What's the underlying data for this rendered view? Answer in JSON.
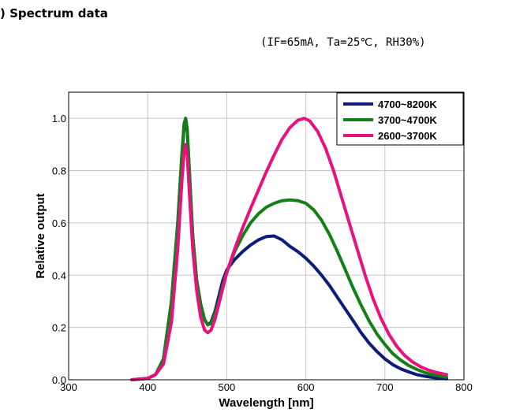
{
  "page": {
    "heading": ") Spectrum data",
    "conditions": "(IF=65mA, Ta=25℃, RH30%)"
  },
  "chart_data": {
    "type": "line",
    "xlabel": "Wavelength [nm]",
    "ylabel": "Relative output",
    "xlim": [
      300,
      800
    ],
    "ylim": [
      0,
      1.1
    ],
    "xticks": [
      300,
      400,
      500,
      600,
      700,
      800
    ],
    "yticks": [
      0.0,
      0.2,
      0.4,
      0.6,
      0.8,
      1.0
    ],
    "ytick_labels": [
      "0.0",
      "0.2",
      "0.4",
      "0.6",
      "0.8",
      "1.0"
    ],
    "grid": true,
    "legend_position": "top-right",
    "series": [
      {
        "name": "4700~8200K",
        "color": "#0b1c7a",
        "points": [
          [
            380,
            0.0
          ],
          [
            400,
            0.005
          ],
          [
            410,
            0.02
          ],
          [
            420,
            0.08
          ],
          [
            430,
            0.3
          ],
          [
            438,
            0.6
          ],
          [
            443,
            0.85
          ],
          [
            446,
            0.97
          ],
          [
            448,
            1.0
          ],
          [
            450,
            0.95
          ],
          [
            453,
            0.78
          ],
          [
            457,
            0.55
          ],
          [
            462,
            0.38
          ],
          [
            467,
            0.29
          ],
          [
            472,
            0.23
          ],
          [
            476,
            0.21
          ],
          [
            480,
            0.22
          ],
          [
            485,
            0.26
          ],
          [
            490,
            0.32
          ],
          [
            495,
            0.38
          ],
          [
            500,
            0.42
          ],
          [
            510,
            0.46
          ],
          [
            520,
            0.49
          ],
          [
            530,
            0.515
          ],
          [
            540,
            0.535
          ],
          [
            550,
            0.548
          ],
          [
            560,
            0.55
          ],
          [
            570,
            0.535
          ],
          [
            580,
            0.51
          ],
          [
            590,
            0.49
          ],
          [
            600,
            0.465
          ],
          [
            610,
            0.435
          ],
          [
            620,
            0.4
          ],
          [
            630,
            0.36
          ],
          [
            640,
            0.315
          ],
          [
            650,
            0.27
          ],
          [
            660,
            0.225
          ],
          [
            670,
            0.18
          ],
          [
            680,
            0.14
          ],
          [
            690,
            0.108
          ],
          [
            700,
            0.08
          ],
          [
            710,
            0.058
          ],
          [
            720,
            0.042
          ],
          [
            730,
            0.03
          ],
          [
            740,
            0.02
          ],
          [
            750,
            0.014
          ],
          [
            760,
            0.009
          ],
          [
            770,
            0.006
          ],
          [
            778,
            0.004
          ]
        ]
      },
      {
        "name": "3700~4700K",
        "color": "#128015",
        "points": [
          [
            380,
            0.0
          ],
          [
            400,
            0.005
          ],
          [
            410,
            0.02
          ],
          [
            420,
            0.08
          ],
          [
            430,
            0.3
          ],
          [
            438,
            0.6
          ],
          [
            443,
            0.85
          ],
          [
            446,
            0.98
          ],
          [
            448,
            1.0
          ],
          [
            450,
            0.96
          ],
          [
            453,
            0.78
          ],
          [
            457,
            0.55
          ],
          [
            462,
            0.38
          ],
          [
            467,
            0.29
          ],
          [
            472,
            0.23
          ],
          [
            476,
            0.21
          ],
          [
            480,
            0.215
          ],
          [
            485,
            0.25
          ],
          [
            490,
            0.3
          ],
          [
            495,
            0.36
          ],
          [
            500,
            0.41
          ],
          [
            510,
            0.49
          ],
          [
            520,
            0.55
          ],
          [
            530,
            0.6
          ],
          [
            540,
            0.635
          ],
          [
            550,
            0.66
          ],
          [
            560,
            0.675
          ],
          [
            570,
            0.685
          ],
          [
            580,
            0.688
          ],
          [
            590,
            0.685
          ],
          [
            600,
            0.675
          ],
          [
            610,
            0.65
          ],
          [
            620,
            0.61
          ],
          [
            630,
            0.555
          ],
          [
            640,
            0.49
          ],
          [
            650,
            0.42
          ],
          [
            660,
            0.35
          ],
          [
            670,
            0.285
          ],
          [
            680,
            0.225
          ],
          [
            690,
            0.175
          ],
          [
            700,
            0.135
          ],
          [
            710,
            0.1
          ],
          [
            720,
            0.075
          ],
          [
            730,
            0.055
          ],
          [
            740,
            0.04
          ],
          [
            750,
            0.028
          ],
          [
            760,
            0.02
          ],
          [
            770,
            0.014
          ],
          [
            778,
            0.01
          ]
        ]
      },
      {
        "name": "2600~3700K",
        "color": "#e8127f",
        "points": [
          [
            380,
            0.0
          ],
          [
            400,
            0.005
          ],
          [
            410,
            0.02
          ],
          [
            420,
            0.06
          ],
          [
            430,
            0.22
          ],
          [
            438,
            0.5
          ],
          [
            443,
            0.75
          ],
          [
            446,
            0.87
          ],
          [
            448,
            0.9
          ],
          [
            450,
            0.86
          ],
          [
            453,
            0.7
          ],
          [
            457,
            0.5
          ],
          [
            462,
            0.34
          ],
          [
            467,
            0.24
          ],
          [
            472,
            0.19
          ],
          [
            476,
            0.18
          ],
          [
            480,
            0.19
          ],
          [
            485,
            0.23
          ],
          [
            490,
            0.29
          ],
          [
            495,
            0.35
          ],
          [
            500,
            0.41
          ],
          [
            510,
            0.5
          ],
          [
            520,
            0.58
          ],
          [
            530,
            0.655
          ],
          [
            540,
            0.725
          ],
          [
            550,
            0.795
          ],
          [
            560,
            0.86
          ],
          [
            570,
            0.92
          ],
          [
            580,
            0.965
          ],
          [
            590,
            0.993
          ],
          [
            598,
            1.0
          ],
          [
            605,
            0.99
          ],
          [
            615,
            0.95
          ],
          [
            625,
            0.885
          ],
          [
            635,
            0.8
          ],
          [
            645,
            0.7
          ],
          [
            655,
            0.6
          ],
          [
            665,
            0.5
          ],
          [
            675,
            0.4
          ],
          [
            685,
            0.31
          ],
          [
            695,
            0.235
          ],
          [
            705,
            0.175
          ],
          [
            715,
            0.128
          ],
          [
            725,
            0.093
          ],
          [
            735,
            0.068
          ],
          [
            745,
            0.05
          ],
          [
            755,
            0.037
          ],
          [
            765,
            0.028
          ],
          [
            778,
            0.02
          ]
        ]
      }
    ]
  }
}
